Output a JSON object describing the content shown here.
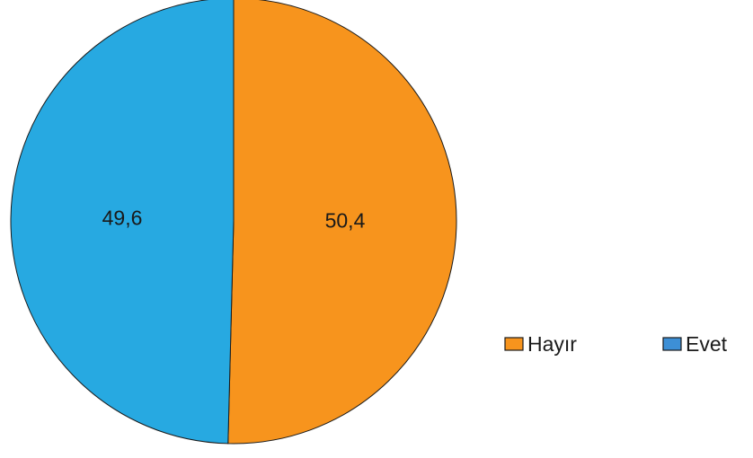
{
  "chart_data": {
    "type": "pie",
    "labels": [
      "Hayır",
      "Evet"
    ],
    "values": [
      50.4,
      49.6
    ],
    "value_labels": [
      "50,4",
      "49,6"
    ],
    "colors": [
      "#f7941d",
      "#27a9e1"
    ],
    "legend_colors": [
      "#f7941d",
      "#3d8fd6"
    ],
    "start_angle_deg": 0,
    "direction": "clockwise",
    "legend_placement": "right-bottom"
  }
}
